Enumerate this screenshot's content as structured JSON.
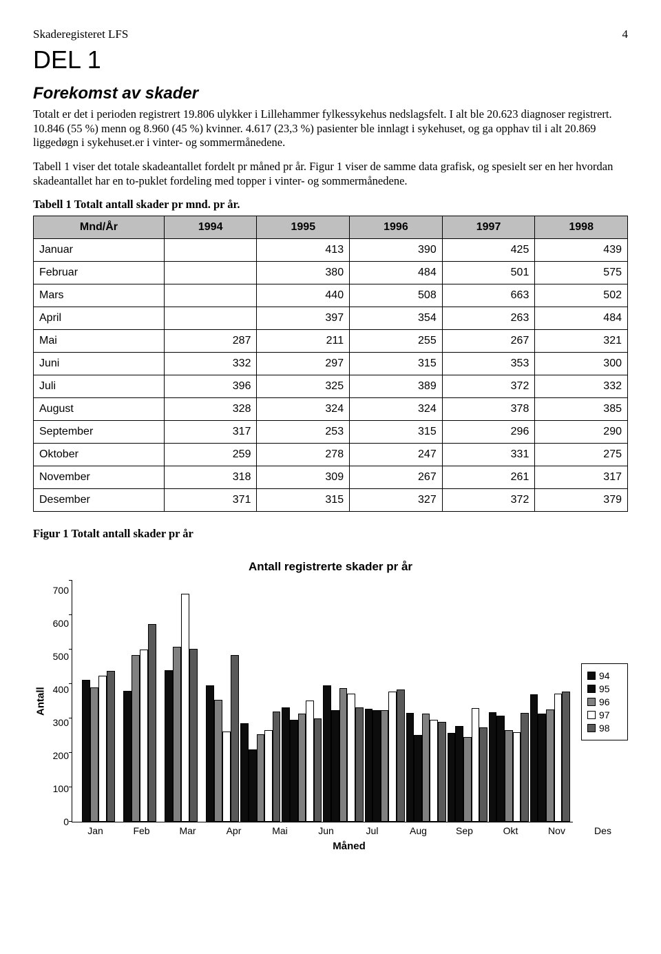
{
  "header": {
    "left": "Skaderegisteret LFS",
    "page_number": "4"
  },
  "del1": "DEL 1",
  "section_title": "Forekomst av skader",
  "para1": "Totalt er det i perioden registrert 19.806 ulykker i Lillehammer fylkessykehus nedslagsfelt. I alt ble 20.623 diagnoser registrert. 10.846 (55 %) menn og 8.960 (45 %) kvinner. 4.617 (23,3 %) pasienter ble innlagt i sykehuset, og ga opphav til i alt 20.869 liggedøgn i sykehuset.er i vinter- og sommermånedene.",
  "para2": "Tabell 1 viser det totale skadeantallet fordelt pr måned pr år. Figur 1 viser de samme data grafisk, og spesielt ser en her hvordan skadeantallet har en to-puklet fordeling med topper i vinter- og sommermånedene.",
  "table": {
    "caption": "Tabell 1  Totalt antall skader pr mnd. pr år.",
    "columns": [
      "Mnd/År",
      "1994",
      "1995",
      "1996",
      "1997",
      "1998"
    ],
    "rows": [
      [
        "Januar",
        "",
        "413",
        "390",
        "425",
        "439"
      ],
      [
        "Februar",
        "",
        "380",
        "484",
        "501",
        "575"
      ],
      [
        "Mars",
        "",
        "440",
        "508",
        "663",
        "502"
      ],
      [
        "April",
        "",
        "397",
        "354",
        "263",
        "484"
      ],
      [
        "Mai",
        "287",
        "211",
        "255",
        "267",
        "321"
      ],
      [
        "Juni",
        "332",
        "297",
        "315",
        "353",
        "300"
      ],
      [
        "Juli",
        "396",
        "325",
        "389",
        "372",
        "332"
      ],
      [
        "August",
        "328",
        "324",
        "324",
        "378",
        "385"
      ],
      [
        "September",
        "317",
        "253",
        "315",
        "296",
        "290"
      ],
      [
        "Oktober",
        "259",
        "278",
        "247",
        "331",
        "275"
      ],
      [
        "November",
        "318",
        "309",
        "267",
        "261",
        "317"
      ],
      [
        "Desember",
        "371",
        "315",
        "327",
        "372",
        "379"
      ]
    ]
  },
  "figure_caption": "Figur 1  Totalt antall skader pr år",
  "chart": {
    "type": "bar",
    "title": "Antall registrerte skader pr år",
    "xlabel": "Måned",
    "ylabel": "Antall",
    "ylim": [
      0,
      700
    ],
    "ytick_step": 100,
    "yticks": [
      "0",
      "100",
      "200",
      "300",
      "400",
      "500",
      "600",
      "700"
    ],
    "categories": [
      "Jan",
      "Feb",
      "Mar",
      "Apr",
      "Mai",
      "Jun",
      "Jul",
      "Aug",
      "Sep",
      "Okt",
      "Nov",
      "Des"
    ],
    "series": [
      {
        "name": "94",
        "color": "#0d0d0d"
      },
      {
        "name": "95",
        "color": "#0d0d0d"
      },
      {
        "name": "96",
        "color": "#808080"
      },
      {
        "name": "97",
        "color": "#ffffff"
      },
      {
        "name": "98",
        "color": "#595959"
      }
    ],
    "values": [
      [
        null,
        413,
        390,
        425,
        439
      ],
      [
        null,
        380,
        484,
        501,
        575
      ],
      [
        null,
        440,
        508,
        663,
        502
      ],
      [
        null,
        397,
        354,
        263,
        484
      ],
      [
        287,
        211,
        255,
        267,
        321
      ],
      [
        332,
        297,
        315,
        353,
        300
      ],
      [
        396,
        325,
        389,
        372,
        332
      ],
      [
        328,
        324,
        324,
        378,
        385
      ],
      [
        317,
        253,
        315,
        296,
        290
      ],
      [
        259,
        278,
        247,
        331,
        275
      ],
      [
        318,
        309,
        267,
        261,
        317
      ],
      [
        371,
        315,
        327,
        372,
        379
      ]
    ],
    "label_fontsize": 14,
    "title_fontsize": 17,
    "bar_border_color": "#000000",
    "background_color": "#ffffff"
  }
}
